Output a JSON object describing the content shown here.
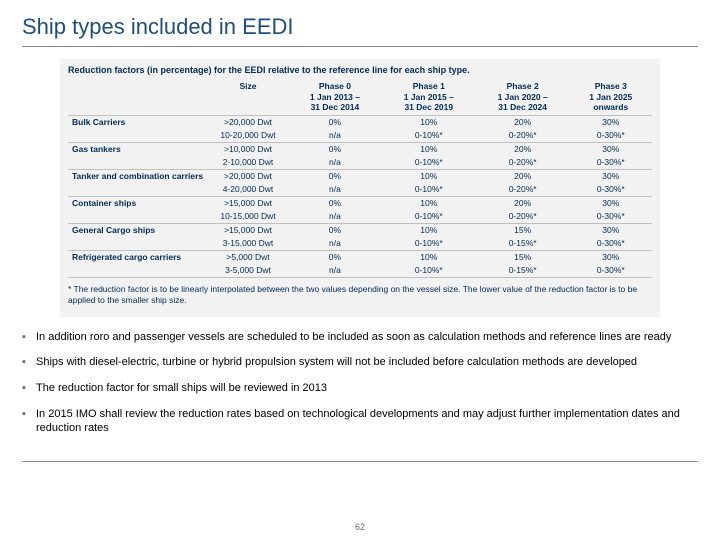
{
  "title": "Ship types included in EEDI",
  "table": {
    "caption": "Reduction factors (in percentage) for the EEDI relative to the reference line for each ship type.",
    "headers": [
      "",
      "Size",
      "Phase 0\n1 Jan 2013 –\n31 Dec 2014",
      "Phase 1\n1 Jan 2015 –\n31 Dec 2019",
      "Phase 2\n1 Jan 2020 –\n31 Dec 2024",
      "Phase 3\n1 Jan 2025\nonwards"
    ],
    "groups": [
      {
        "name": "Bulk Carriers",
        "rows": [
          {
            "size": ">20,000 Dwt",
            "p0": "0%",
            "p1": "10%",
            "p2": "20%",
            "p3": "30%"
          },
          {
            "size": "10-20,000 Dwt",
            "p0": "n/a",
            "p1": "0-10%*",
            "p2": "0-20%*",
            "p3": "0-30%*"
          }
        ]
      },
      {
        "name": "Gas tankers",
        "rows": [
          {
            "size": ">10,000 Dwt",
            "p0": "0%",
            "p1": "10%",
            "p2": "20%",
            "p3": "30%"
          },
          {
            "size": "2-10,000 Dwt",
            "p0": "n/a",
            "p1": "0-10%*",
            "p2": "0-20%*",
            "p3": "0-30%*"
          }
        ]
      },
      {
        "name": "Tanker and combination carriers",
        "rows": [
          {
            "size": ">20,000 Dwt",
            "p0": "0%",
            "p1": "10%",
            "p2": "20%",
            "p3": "30%"
          },
          {
            "size": "4-20,000 Dwt",
            "p0": "n/a",
            "p1": "0-10%*",
            "p2": "0-20%*",
            "p3": "0-30%*"
          }
        ]
      },
      {
        "name": "Container ships",
        "rows": [
          {
            "size": ">15,000 Dwt",
            "p0": "0%",
            "p1": "10%",
            "p2": "20%",
            "p3": "30%"
          },
          {
            "size": "10-15,000 Dwt",
            "p0": "n/a",
            "p1": "0-10%*",
            "p2": "0-20%*",
            "p3": "0-30%*"
          }
        ]
      },
      {
        "name": "General Cargo ships",
        "rows": [
          {
            "size": ">15,000 Dwt",
            "p0": "0%",
            "p1": "10%",
            "p2": "15%",
            "p3": "30%"
          },
          {
            "size": "3-15,000 Dwt",
            "p0": "n/a",
            "p1": "0-10%*",
            "p2": "0-15%*",
            "p3": "0-30%*"
          }
        ]
      },
      {
        "name": "Refrigerated cargo carriers",
        "rows": [
          {
            "size": ">5,000 Dwt",
            "p0": "0%",
            "p1": "10%",
            "p2": "15%",
            "p3": "30%"
          },
          {
            "size": "3-5,000 Dwt",
            "p0": "n/a",
            "p1": "0-10%*",
            "p2": "0-15%*",
            "p3": "0-30%*"
          }
        ]
      }
    ],
    "footnote": "* The reduction factor is to be linearly interpolated between the two values depending on the vessel size. The lower value of the reduction factor is to be applied to the smaller ship size."
  },
  "bullets": [
    "In addition roro and passenger vessels are scheduled to be included as soon as calculation methods and reference lines are ready",
    "Ships with diesel-electric, turbine or hybrid propulsion system will not be included before calculation methods are developed",
    "The reduction factor for small ships will be reviewed in 2013",
    "In 2015 IMO shall review the reduction rates based on technological developments and may adjust further implementation dates and reduction rates"
  ],
  "page_number": "62",
  "colors": {
    "title": "#1f4e79",
    "table_bg": "#f2f2f2",
    "table_text": "#002b54",
    "rule": "#888888"
  }
}
